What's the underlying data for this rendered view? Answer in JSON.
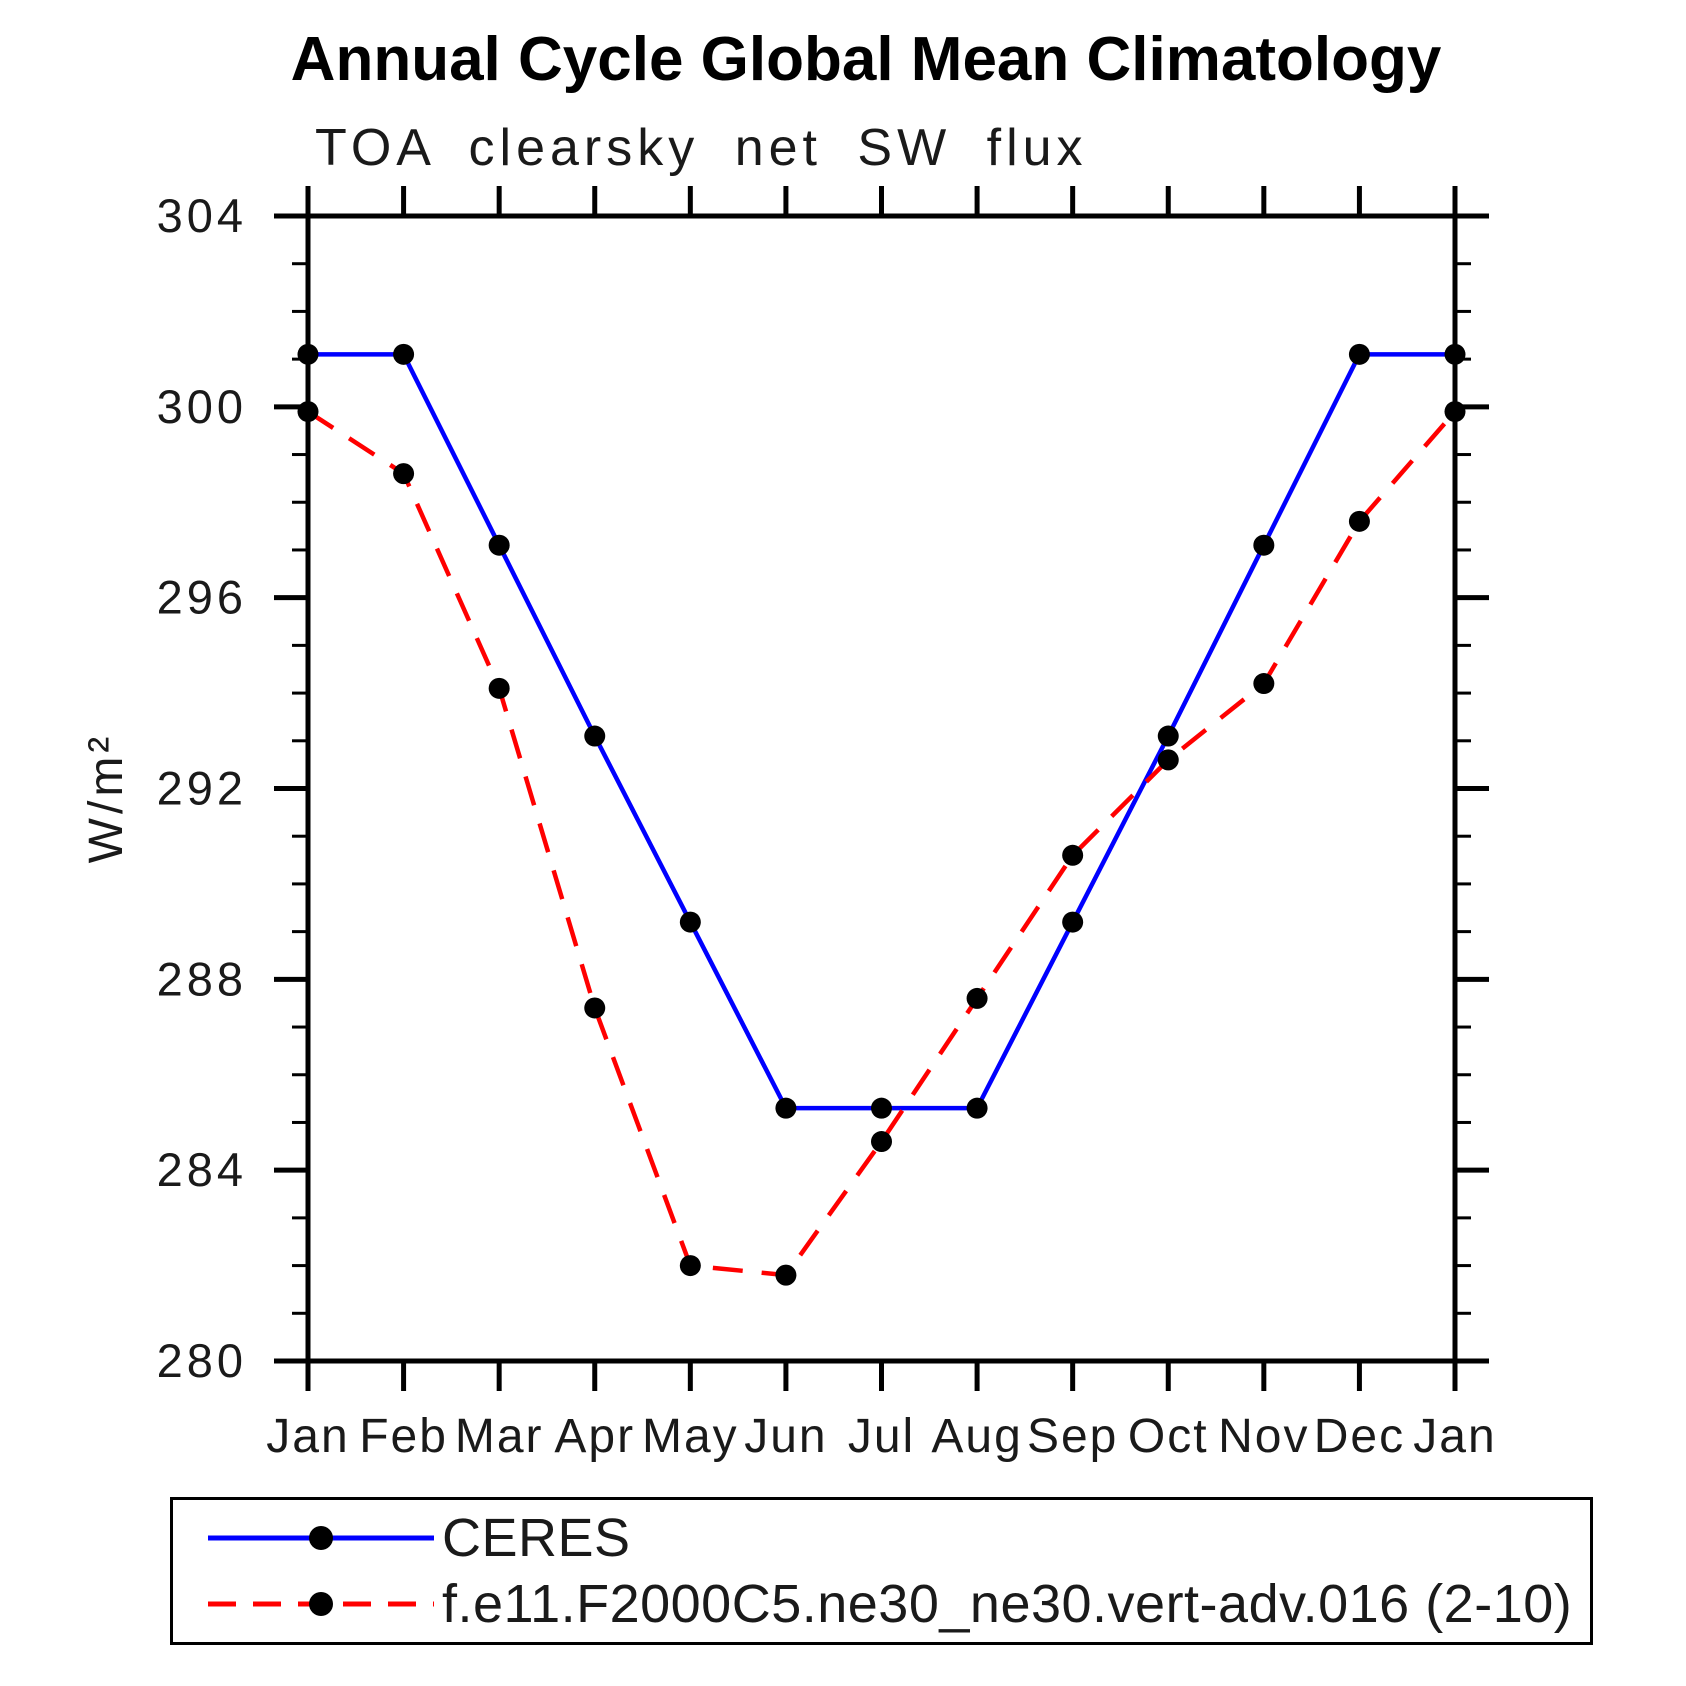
{
  "title": "Annual Cycle Global Mean Climatology",
  "subtitle": "TOA clearsky net SW flux",
  "ylabel": "W/m²",
  "legend": {
    "items": [
      {
        "label": "CERES",
        "color": "#0000ff",
        "style": "solid",
        "marker_color": "#000000"
      },
      {
        "label": "f.e11.F2000C5.ne30_ne30.vert-adv.016 (2-10)",
        "color": "#ff0000",
        "style": "dashed",
        "marker_color": "#000000"
      }
    ]
  },
  "chart_data": {
    "type": "line",
    "categories": [
      "Jan",
      "Feb",
      "Mar",
      "Apr",
      "May",
      "Jun",
      "Jul",
      "Aug",
      "Sep",
      "Oct",
      "Nov",
      "Dec",
      "Jan"
    ],
    "series": [
      {
        "name": "CERES",
        "color": "#0000ff",
        "style": "solid",
        "values": [
          301.1,
          301.1,
          297.1,
          293.1,
          289.2,
          285.3,
          285.3,
          285.3,
          289.2,
          293.1,
          297.1,
          301.1,
          301.1
        ]
      },
      {
        "name": "f.e11.F2000C5.ne30_ne30.vert-adv.016 (2-10)",
        "color": "#ff0000",
        "style": "dashed",
        "values": [
          299.9,
          298.6,
          294.1,
          287.4,
          282.0,
          281.8,
          284.6,
          287.6,
          290.6,
          292.6,
          294.2,
          297.6,
          299.9
        ]
      }
    ],
    "ylim": [
      280,
      304
    ],
    "yticks": [
      280,
      284,
      288,
      292,
      296,
      300,
      304
    ],
    "y_minor_step": 1,
    "xlabel": "",
    "ylabel": "W/m²",
    "grid": false,
    "legend_position": "bottom",
    "marker": {
      "shape": "circle",
      "color": "#000000"
    }
  }
}
